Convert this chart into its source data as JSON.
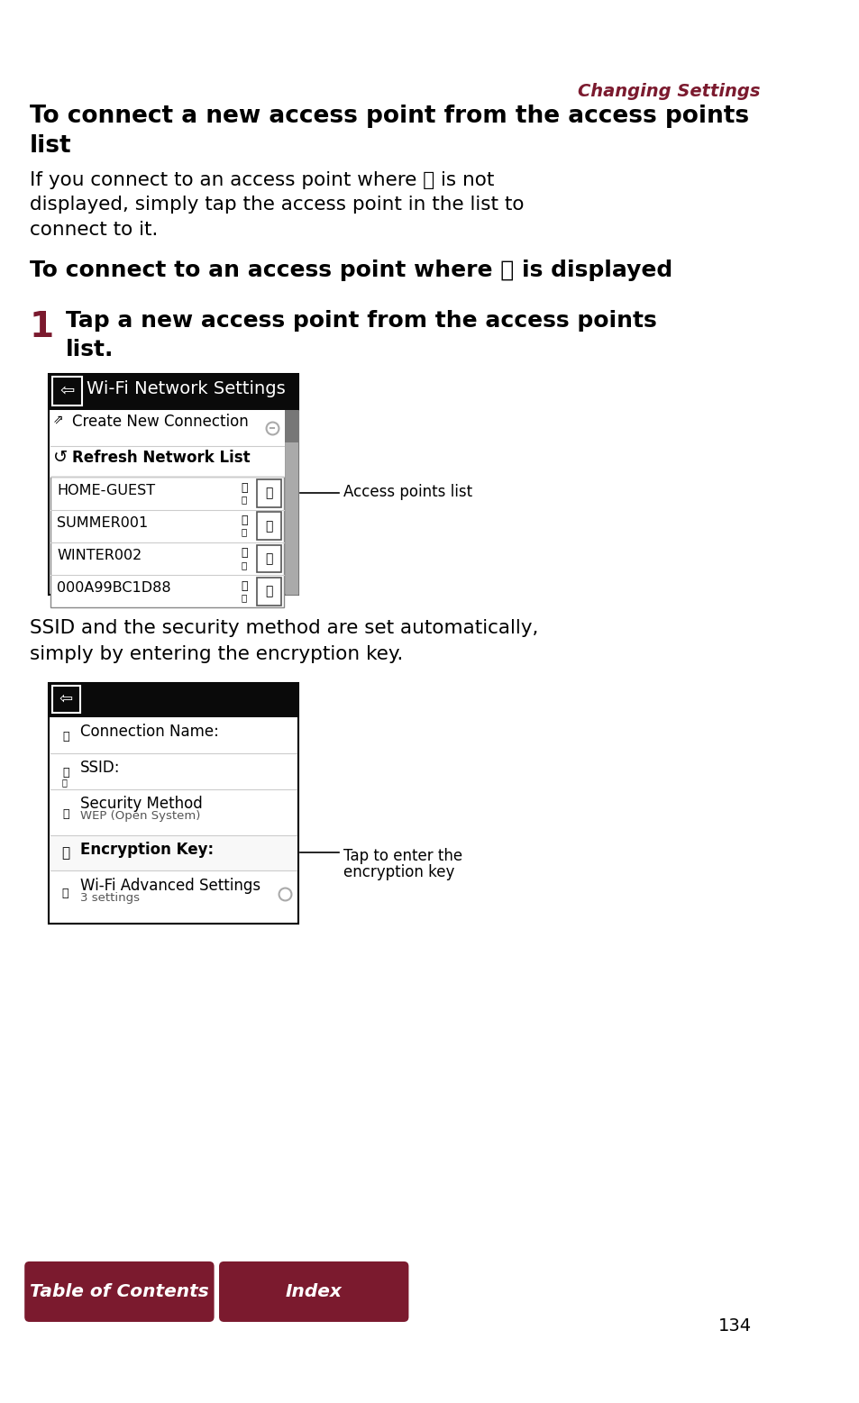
{
  "bg_color": "#ffffff",
  "dark_red": "#7B1A2E",
  "black": "#000000",
  "white": "#ffffff",
  "light_gray": "#cccccc",
  "medium_gray": "#aaaaaa",
  "dark_gray": "#555555",
  "header_bg": "#0a0a0a",
  "scrollbar_bg": "#aaaaaa",
  "scrollbar_thumb": "#777777",
  "enc_highlight": "#f8f8f8",
  "page_number": "134",
  "header_text": "Changing Settings",
  "title1_line1": "To connect a new access point from the access points",
  "title1_line2": "list",
  "body1_line1": "If you connect to an access point where ⚿ is not",
  "body1_line2": "displayed, simply tap the access point in the list to",
  "body1_line3": "connect to it.",
  "title2": "To connect to an access point where ⚿ is displayed",
  "step_num": "1",
  "step_line1": "Tap a new access point from the access points",
  "step_line2": "list.",
  "wifi_header": "Wi-Fi Network Settings",
  "menu_item1": "Create New Connection",
  "menu_item2": "Refresh Network List",
  "network1": "HOME-GUEST",
  "network2": "SUMMER001",
  "network3": "WINTER002",
  "network4": "000A99BC1D88",
  "callout1": "Access points list",
  "body2_line1": "SSID and the security method are set automatically,",
  "body2_line2": "simply by entering the encryption key.",
  "conn_label1": "Connection Name:",
  "conn_label2": "SSID:",
  "conn_label3": "Security Method",
  "conn_label3b": "WEP (Open System)",
  "conn_label4": "Encryption Key:",
  "conn_label5": "Wi-Fi Advanced Settings",
  "conn_label5b": "3 settings",
  "callout2_line1": "Tap to enter the",
  "callout2_line2": "encryption key",
  "btn1": "Table of Contents",
  "btn2": "Index"
}
